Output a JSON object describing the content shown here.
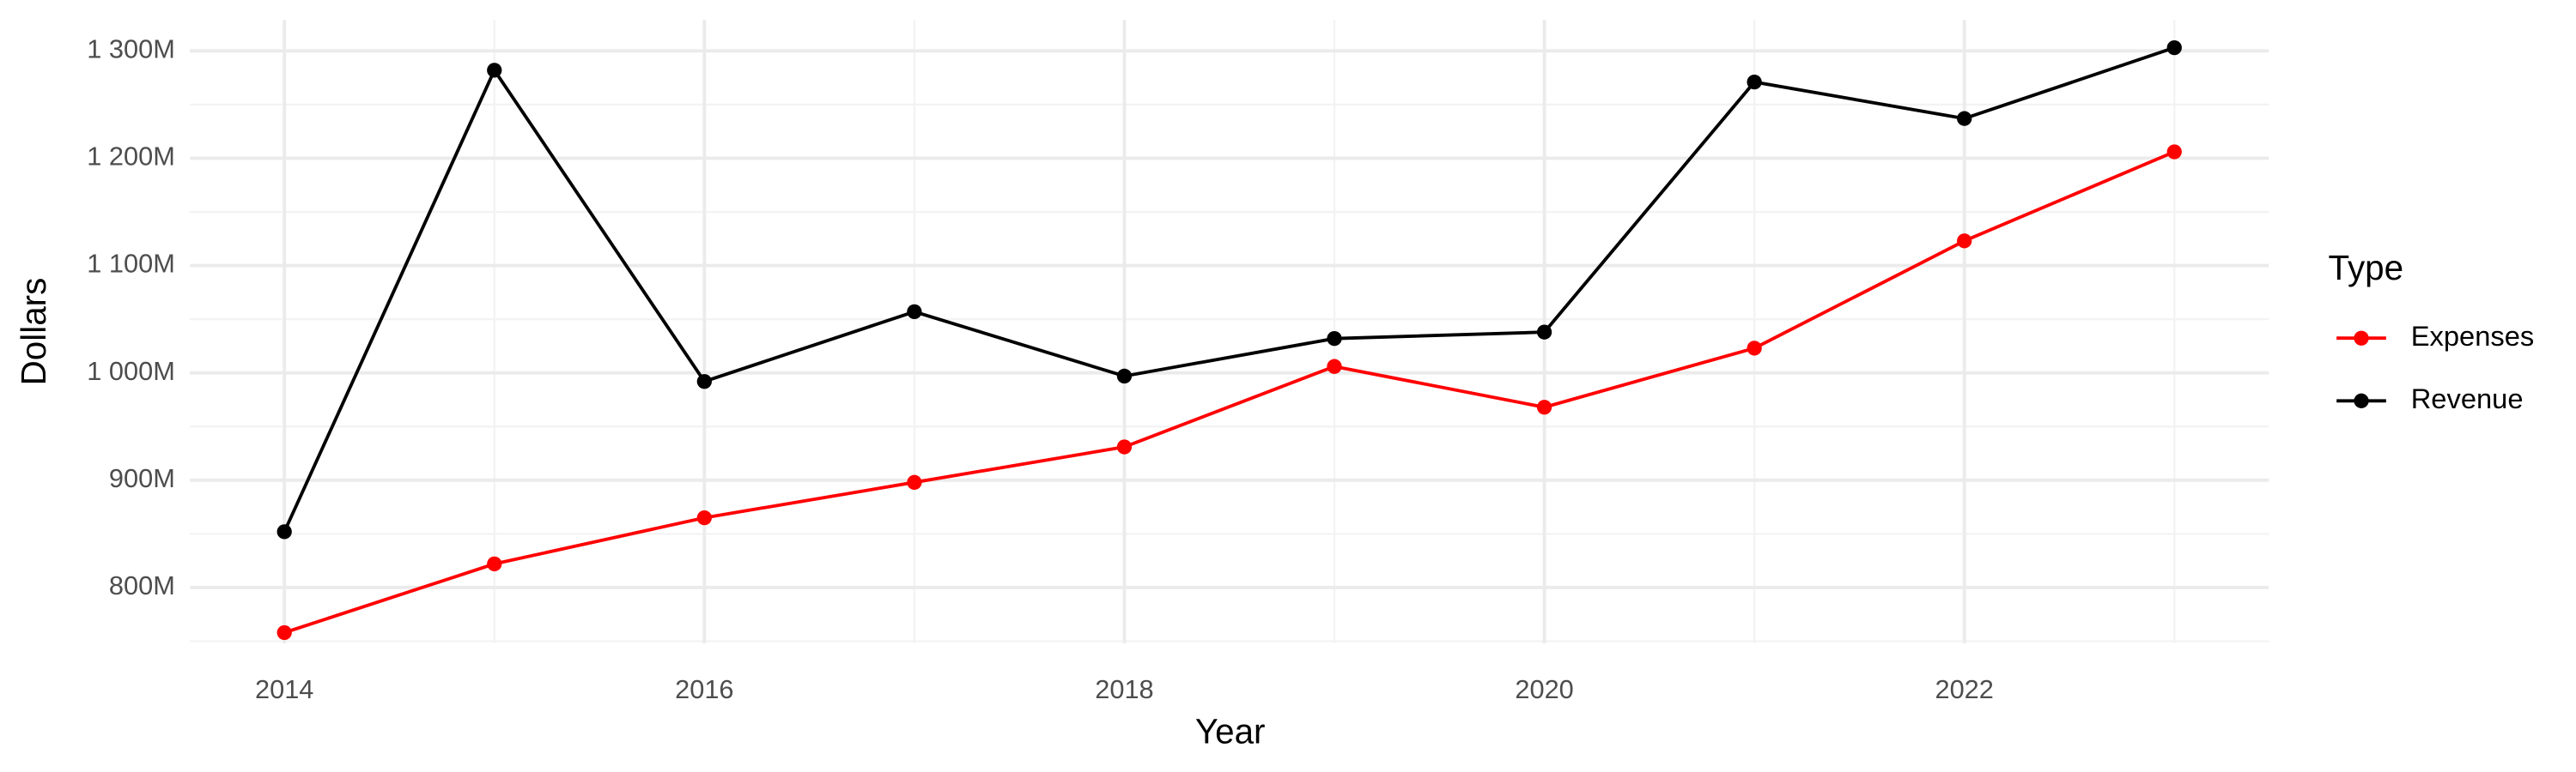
{
  "chart_data": {
    "type": "line",
    "x_label": "Year",
    "y_label": "Dollars",
    "legend_title": "Type",
    "x": [
      2014,
      2015,
      2016,
      2017,
      2018,
      2019,
      2020,
      2021,
      2022,
      2023
    ],
    "series": [
      {
        "name": "Expenses",
        "color": "#ff0000",
        "values": [
          758,
          822,
          865,
          898,
          931,
          1006,
          968,
          1023,
          1123,
          1206
        ]
      },
      {
        "name": "Revenue",
        "color": "#000000",
        "values": [
          852,
          1282,
          992,
          1057,
          997,
          1032,
          1038,
          1271,
          1237,
          1303
        ]
      }
    ],
    "xlim": [
      2013.55,
      2023.45
    ],
    "xticks": [
      2014,
      2016,
      2018,
      2020,
      2022
    ],
    "ylim": [
      748,
      1329
    ],
    "yticks": [
      {
        "value": 800,
        "label": "800M"
      },
      {
        "value": 900,
        "label": "900M"
      },
      {
        "value": 1000,
        "label": "1 000M"
      },
      {
        "value": 1100,
        "label": "1 100M"
      },
      {
        "value": 1200,
        "label": "1 200M"
      },
      {
        "value": 1300,
        "label": "1 300M"
      }
    ],
    "grid": true,
    "legend_position": "right"
  }
}
